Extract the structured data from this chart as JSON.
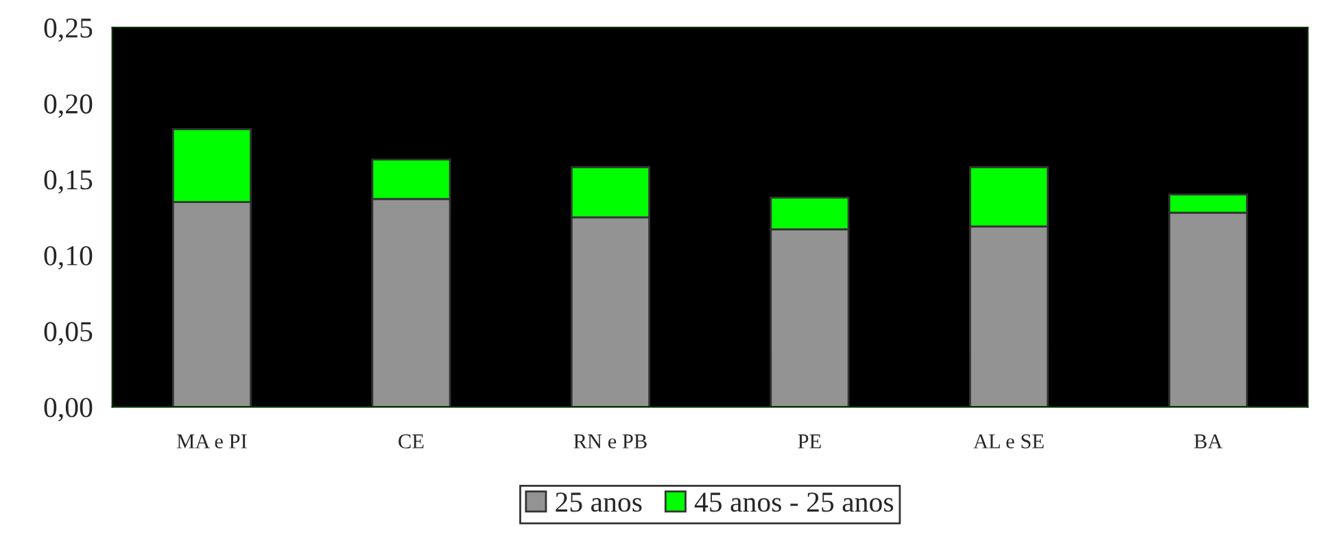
{
  "chart_data": {
    "type": "bar",
    "stacked": true,
    "categories": [
      "MA e PI",
      "CE",
      "RN e PB",
      "PE",
      "AL e SE",
      "BA"
    ],
    "series": [
      {
        "name": "25 anos",
        "color": "#939393",
        "values": [
          0.135,
          0.137,
          0.125,
          0.117,
          0.119,
          0.128
        ]
      },
      {
        "name": "45 anos - 25 anos",
        "color": "#00ff00",
        "values": [
          0.048,
          0.026,
          0.033,
          0.021,
          0.039,
          0.012
        ]
      }
    ],
    "ylim": [
      0,
      0.25
    ],
    "yticks": [
      {
        "value": 0,
        "label": "0,00"
      },
      {
        "value": 0.05,
        "label": "0,05"
      },
      {
        "value": 0.1,
        "label": "0,10"
      },
      {
        "value": 0.15,
        "label": "0,15"
      },
      {
        "value": 0.2,
        "label": "0,20"
      },
      {
        "value": 0.25,
        "label": "0,25"
      }
    ],
    "grid": false,
    "legend": "bottom"
  }
}
